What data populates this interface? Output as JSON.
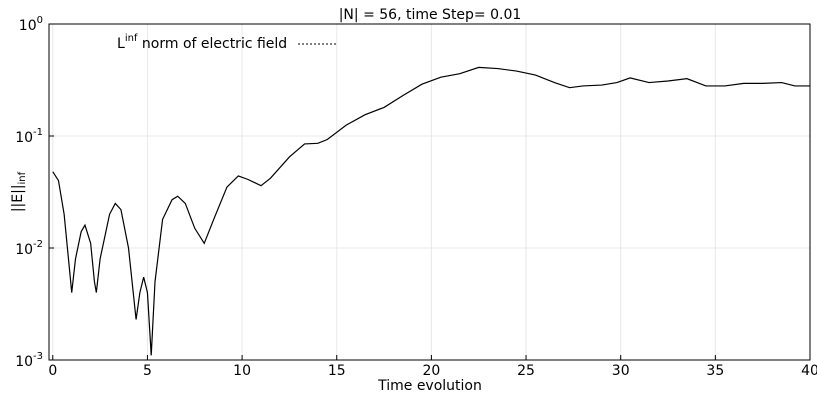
{
  "chart_data": {
    "type": "line",
    "title": "|N| = 56, time Step= 0.01",
    "xlabel": "Time evolution",
    "ylabel": "||E||_inf",
    "yscale": "log",
    "grid": true,
    "legend": "upper left",
    "xlim": [
      -0.2,
      40
    ],
    "ylim": [
      0.001,
      1
    ],
    "xticks": [
      0,
      5,
      10,
      15,
      20,
      25,
      30,
      35,
      40
    ],
    "yticks": [
      {
        "value": 0.001,
        "label": "10^-3"
      },
      {
        "value": 0.01,
        "label": "10^-2"
      },
      {
        "value": 0.1,
        "label": "10^-1"
      },
      {
        "value": 1,
        "label": "10^0"
      }
    ],
    "x": [
      0,
      0.3,
      0.6,
      0.9,
      1.0,
      1.2,
      1.5,
      1.7,
      2.0,
      2.2,
      2.3,
      2.5,
      3.0,
      3.3,
      3.6,
      4.0,
      4.4,
      4.6,
      4.8,
      5.0,
      5.2,
      5.4,
      5.8,
      6.3,
      6.6,
      7.0,
      7.5,
      8.0,
      8.5,
      9.2,
      9.8,
      10.3,
      11.0,
      11.5,
      12.5,
      13.3,
      14.0,
      14.5,
      15.5,
      16.5,
      17.5,
      18.5,
      19.5,
      20.5,
      21.5,
      22.5,
      23.5,
      24.5,
      25.5,
      26.5,
      27.3,
      28,
      29,
      29.8,
      30.5,
      31.5,
      32.5,
      33.5,
      34.5,
      35.5,
      36.5,
      37.5,
      38.5,
      39.2,
      40
    ],
    "series": [
      {
        "name": "L^inf norm of electric field",
        "color": "#000000",
        "values": [
          0.048,
          0.04,
          0.02,
          0.006,
          0.004,
          0.008,
          0.014,
          0.016,
          0.011,
          0.005,
          0.004,
          0.008,
          0.02,
          0.025,
          0.022,
          0.01,
          0.0023,
          0.004,
          0.0055,
          0.004,
          0.0011,
          0.005,
          0.018,
          0.027,
          0.029,
          0.025,
          0.015,
          0.011,
          0.018,
          0.035,
          0.044,
          0.041,
          0.036,
          0.042,
          0.065,
          0.085,
          0.086,
          0.093,
          0.125,
          0.155,
          0.18,
          0.23,
          0.29,
          0.335,
          0.36,
          0.41,
          0.4,
          0.38,
          0.35,
          0.3,
          0.27,
          0.28,
          0.285,
          0.3,
          0.33,
          0.3,
          0.31,
          0.325,
          0.28,
          0.28,
          0.295,
          0.295,
          0.3,
          0.28,
          0.28
        ]
      }
    ]
  }
}
